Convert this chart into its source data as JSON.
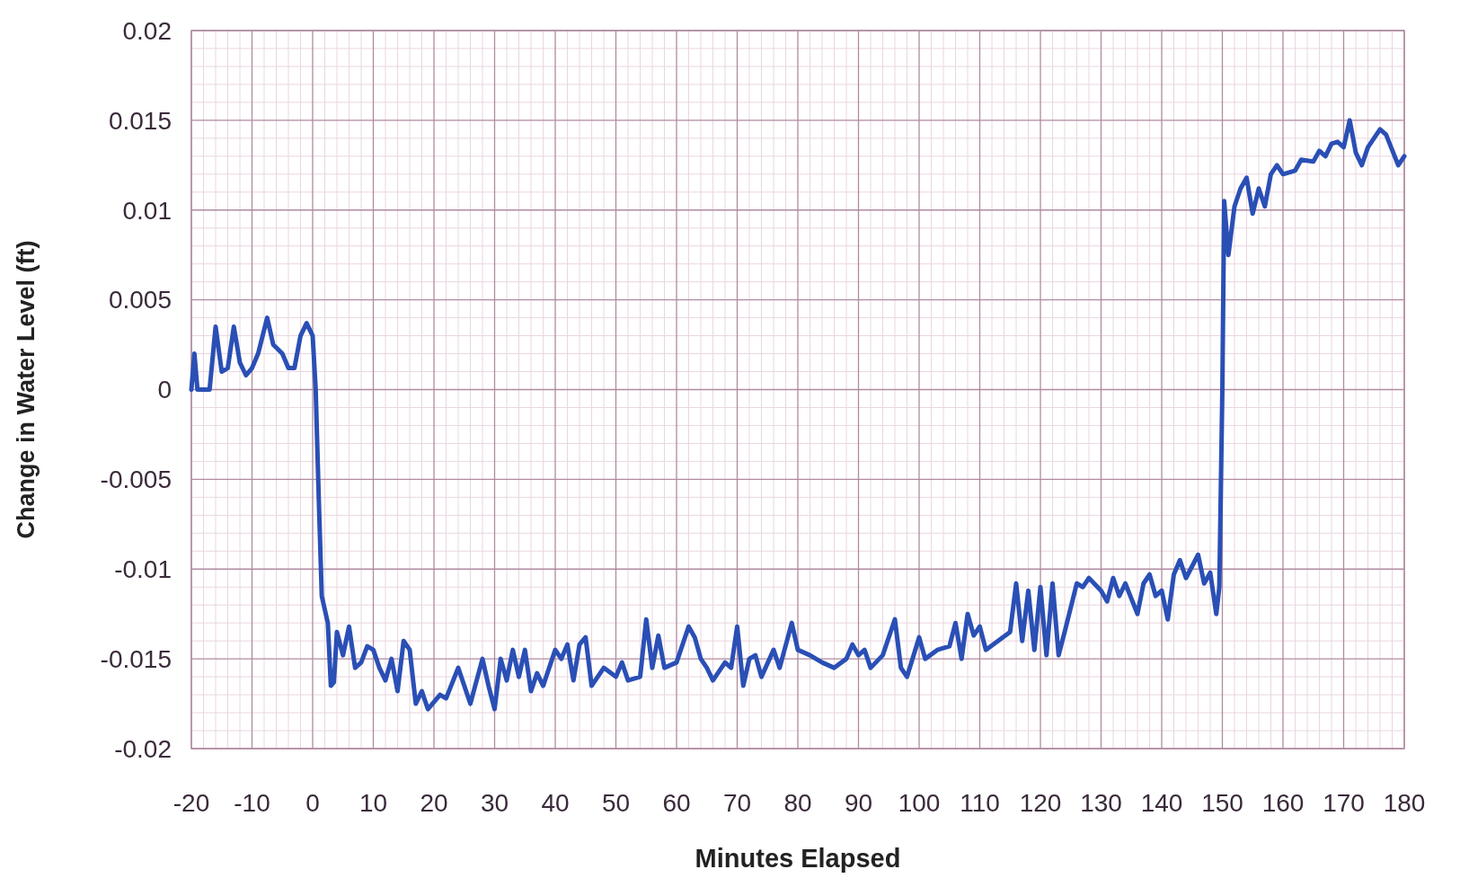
{
  "chart_data": {
    "type": "line",
    "xlabel": "Minutes Elapsed",
    "ylabel": "Change in Water Level (ft)",
    "xlim": [
      -20,
      180
    ],
    "xticks": [
      -20,
      -10,
      0,
      10,
      20,
      30,
      40,
      50,
      60,
      70,
      80,
      90,
      100,
      110,
      120,
      130,
      140,
      150,
      160,
      170,
      180
    ],
    "ylim": [
      -0.02,
      0.02
    ],
    "yticks": [
      -0.02,
      -0.015,
      -0.01,
      -0.005,
      0,
      0.005,
      0.01,
      0.015,
      0.02
    ],
    "grid": true,
    "marker": "none",
    "line_style": "solid",
    "series": [
      {
        "color": "#2a4fb5",
        "x": [
          -20,
          -19.5,
          -19,
          -17,
          -16,
          -15,
          -14,
          -13,
          -12,
          -11,
          -10,
          -9,
          -7.5,
          -6.5,
          -5,
          -4,
          -3,
          -2,
          -1,
          0,
          0.5,
          1,
          1.5,
          2.5,
          3,
          3.5,
          4,
          5,
          6,
          7,
          8,
          9,
          10,
          11,
          12,
          13,
          14,
          15,
          16,
          17,
          18,
          19,
          21,
          22,
          24,
          26,
          28,
          29,
          30,
          31,
          32,
          33,
          34,
          35,
          36,
          37,
          38,
          40,
          41,
          42,
          43,
          44,
          45,
          46,
          48,
          50,
          51,
          52,
          54,
          55,
          56,
          57,
          58,
          60,
          62,
          63,
          64,
          65,
          66,
          68,
          69,
          70,
          71,
          72,
          73,
          74,
          76,
          77,
          79,
          80,
          82,
          84,
          86,
          88,
          89,
          90,
          91,
          92,
          94,
          96,
          97,
          98,
          100,
          101,
          103,
          105,
          106,
          107,
          108,
          109,
          110,
          111,
          113,
          115,
          116,
          117,
          118,
          119,
          120,
          121,
          122,
          123,
          124,
          126,
          127,
          128,
          130,
          131,
          132,
          133,
          134,
          136,
          137,
          138,
          139,
          140,
          141,
          142,
          143,
          144,
          146,
          147,
          148,
          149,
          149.5,
          150,
          150.3,
          151,
          152,
          153,
          154,
          155,
          156,
          157,
          158,
          159,
          160,
          162,
          163,
          165,
          166,
          167,
          168,
          169,
          170,
          171,
          172,
          173,
          174,
          176,
          177,
          179,
          180
        ],
        "values": [
          0,
          0.002,
          0,
          0,
          0.0035,
          0.001,
          0.0012,
          0.0035,
          0.0015,
          0.0008,
          0.0012,
          0.002,
          0.004,
          0.0025,
          0.002,
          0.0012,
          0.0012,
          0.003,
          0.0037,
          0.003,
          0,
          -0.006,
          -0.0115,
          -0.013,
          -0.0165,
          -0.0163,
          -0.0135,
          -0.0148,
          -0.0132,
          -0.0155,
          -0.0152,
          -0.0143,
          -0.0145,
          -0.0155,
          -0.0162,
          -0.015,
          -0.0168,
          -0.014,
          -0.0145,
          -0.0175,
          -0.0168,
          -0.0178,
          -0.017,
          -0.0172,
          -0.0155,
          -0.0175,
          -0.015,
          -0.0165,
          -0.0178,
          -0.015,
          -0.0162,
          -0.0145,
          -0.016,
          -0.0145,
          -0.0168,
          -0.0158,
          -0.0165,
          -0.0145,
          -0.015,
          -0.0142,
          -0.0162,
          -0.0142,
          -0.0138,
          -0.0165,
          -0.0155,
          -0.016,
          -0.0152,
          -0.0162,
          -0.016,
          -0.0128,
          -0.0155,
          -0.0137,
          -0.0155,
          -0.0152,
          -0.0132,
          -0.0138,
          -0.015,
          -0.0155,
          -0.0162,
          -0.0152,
          -0.0155,
          -0.0132,
          -0.0165,
          -0.015,
          -0.0148,
          -0.016,
          -0.0145,
          -0.0155,
          -0.013,
          -0.0145,
          -0.0148,
          -0.0152,
          -0.0155,
          -0.015,
          -0.0142,
          -0.0148,
          -0.0145,
          -0.0155,
          -0.0148,
          -0.0128,
          -0.0155,
          -0.016,
          -0.0138,
          -0.015,
          -0.0145,
          -0.0143,
          -0.013,
          -0.015,
          -0.0125,
          -0.0137,
          -0.0132,
          -0.0145,
          -0.014,
          -0.0135,
          -0.0108,
          -0.014,
          -0.0112,
          -0.0145,
          -0.011,
          -0.0148,
          -0.0108,
          -0.0148,
          -0.0135,
          -0.0108,
          -0.011,
          -0.0105,
          -0.0112,
          -0.0118,
          -0.0105,
          -0.0115,
          -0.0108,
          -0.0125,
          -0.0108,
          -0.0103,
          -0.0115,
          -0.0112,
          -0.0128,
          -0.0103,
          -0.0095,
          -0.0105,
          -0.0092,
          -0.0108,
          -0.0102,
          -0.0125,
          -0.011,
          0,
          0.0105,
          0.0075,
          0.0102,
          0.0112,
          0.0118,
          0.0098,
          0.0112,
          0.0102,
          0.012,
          0.0125,
          0.012,
          0.0122,
          0.0128,
          0.0127,
          0.0133,
          0.013,
          0.0137,
          0.0138,
          0.0135,
          0.015,
          0.0132,
          0.0125,
          0.0135,
          0.0145,
          0.0142,
          0.0125,
          0.013
        ]
      }
    ]
  }
}
